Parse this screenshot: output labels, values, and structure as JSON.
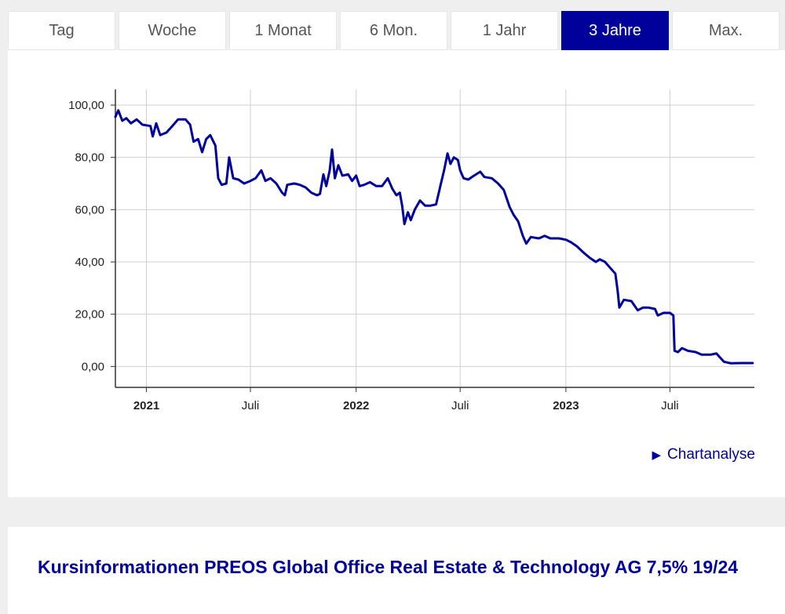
{
  "tabs": [
    {
      "label": "Tag",
      "active": false
    },
    {
      "label": "Woche",
      "active": false
    },
    {
      "label": "1 Monat",
      "active": false
    },
    {
      "label": "6 Mon.",
      "active": false
    },
    {
      "label": "1 Jahr",
      "active": false
    },
    {
      "label": "3 Jahre",
      "active": true
    },
    {
      "label": "Max.",
      "active": false
    }
  ],
  "chart_link": {
    "label": "Chartanalyse"
  },
  "info": {
    "title": "Kursinformationen PREOS Global Office Real Estate & Technology AG 7,5% 19/24"
  },
  "colors": {
    "accent": "#00009a",
    "grid": "#cfcfcf"
  },
  "chart_data": {
    "type": "line",
    "title": "",
    "xlabel": "",
    "ylabel": "",
    "ylim": [
      -8,
      106
    ],
    "xlim": [
      "2020-11-08",
      "2023-11-25"
    ],
    "grid": true,
    "yticks": [
      {
        "value": 0,
        "label": "0,00"
      },
      {
        "value": 20,
        "label": "20,00"
      },
      {
        "value": 40,
        "label": "40,00"
      },
      {
        "value": 60,
        "label": "60,00"
      },
      {
        "value": 80,
        "label": "80,00"
      },
      {
        "value": 100,
        "label": "100,00"
      }
    ],
    "xticks": [
      {
        "date": "2021-01-01",
        "label": "2021",
        "bold": true
      },
      {
        "date": "2021-07-01",
        "label": "Juli",
        "bold": false
      },
      {
        "date": "2022-01-01",
        "label": "2022",
        "bold": true
      },
      {
        "date": "2022-07-01",
        "label": "Juli",
        "bold": false
      },
      {
        "date": "2023-01-01",
        "label": "2023",
        "bold": true
      },
      {
        "date": "2023-07-01",
        "label": "Juli",
        "bold": false
      }
    ],
    "series": [
      {
        "color": "#00009a",
        "points": [
          [
            "2020-11-08",
            95.5
          ],
          [
            "2020-11-13",
            98.0
          ],
          [
            "2020-11-20",
            94.0
          ],
          [
            "2020-11-27",
            95.0
          ],
          [
            "2020-12-05",
            93.0
          ],
          [
            "2020-12-15",
            94.5
          ],
          [
            "2020-12-25",
            92.5
          ],
          [
            "2021-01-08",
            92.0
          ],
          [
            "2021-01-12",
            88.0
          ],
          [
            "2021-01-18",
            93.0
          ],
          [
            "2021-01-25",
            88.5
          ],
          [
            "2021-02-05",
            89.5
          ],
          [
            "2021-02-15",
            92.0
          ],
          [
            "2021-02-25",
            94.5
          ],
          [
            "2021-03-10",
            94.5
          ],
          [
            "2021-03-18",
            92.5
          ],
          [
            "2021-03-24",
            86.0
          ],
          [
            "2021-04-01",
            87.0
          ],
          [
            "2021-04-08",
            82.0
          ],
          [
            "2021-04-15",
            87.0
          ],
          [
            "2021-04-22",
            88.5
          ],
          [
            "2021-05-01",
            84.5
          ],
          [
            "2021-05-06",
            72.0
          ],
          [
            "2021-05-12",
            69.5
          ],
          [
            "2021-05-20",
            70.0
          ],
          [
            "2021-05-25",
            80.0
          ],
          [
            "2021-06-01",
            72.0
          ],
          [
            "2021-06-10",
            71.5
          ],
          [
            "2021-06-20",
            70.0
          ],
          [
            "2021-07-01",
            71.0
          ],
          [
            "2021-07-10",
            72.0
          ],
          [
            "2021-07-20",
            75.0
          ],
          [
            "2021-07-27",
            71.0
          ],
          [
            "2021-08-05",
            72.0
          ],
          [
            "2021-08-15",
            70.0
          ],
          [
            "2021-08-25",
            66.5
          ],
          [
            "2021-08-30",
            65.5
          ],
          [
            "2021-09-03",
            69.5
          ],
          [
            "2021-09-15",
            70.0
          ],
          [
            "2021-09-25",
            69.5
          ],
          [
            "2021-10-05",
            68.5
          ],
          [
            "2021-10-15",
            66.5
          ],
          [
            "2021-10-25",
            65.5
          ],
          [
            "2021-10-30",
            66.0
          ],
          [
            "2021-11-05",
            73.5
          ],
          [
            "2021-11-10",
            69.0
          ],
          [
            "2021-11-16",
            75.0
          ],
          [
            "2021-11-20",
            83.0
          ],
          [
            "2021-11-25",
            72.0
          ],
          [
            "2021-12-01",
            77.0
          ],
          [
            "2021-12-08",
            73.0
          ],
          [
            "2021-12-18",
            73.5
          ],
          [
            "2021-12-25",
            71.0
          ],
          [
            "2022-01-01",
            73.0
          ],
          [
            "2022-01-07",
            69.0
          ],
          [
            "2022-01-15",
            69.5
          ],
          [
            "2022-01-25",
            70.5
          ],
          [
            "2022-02-05",
            69.0
          ],
          [
            "2022-02-15",
            69.0
          ],
          [
            "2022-02-25",
            72.0
          ],
          [
            "2022-03-05",
            68.0
          ],
          [
            "2022-03-12",
            65.5
          ],
          [
            "2022-03-18",
            66.5
          ],
          [
            "2022-03-22",
            61.5
          ],
          [
            "2022-03-26",
            54.5
          ],
          [
            "2022-04-01",
            59.0
          ],
          [
            "2022-04-06",
            56.0
          ],
          [
            "2022-04-13",
            60.0
          ],
          [
            "2022-04-22",
            63.5
          ],
          [
            "2022-05-01",
            61.5
          ],
          [
            "2022-05-10",
            61.5
          ],
          [
            "2022-05-20",
            62.0
          ],
          [
            "2022-05-28",
            69.5
          ],
          [
            "2022-06-03",
            75.0
          ],
          [
            "2022-06-09",
            81.5
          ],
          [
            "2022-06-14",
            77.5
          ],
          [
            "2022-06-20",
            80.0
          ],
          [
            "2022-06-27",
            79.0
          ],
          [
            "2022-07-01",
            75.0
          ],
          [
            "2022-07-07",
            72.0
          ],
          [
            "2022-07-15",
            71.5
          ],
          [
            "2022-07-25",
            73.0
          ],
          [
            "2022-08-05",
            74.5
          ],
          [
            "2022-08-12",
            72.5
          ],
          [
            "2022-08-25",
            72.0
          ],
          [
            "2022-09-05",
            70.0
          ],
          [
            "2022-09-15",
            67.5
          ],
          [
            "2022-09-25",
            61.0
          ],
          [
            "2022-10-02",
            58.0
          ],
          [
            "2022-10-10",
            55.5
          ],
          [
            "2022-10-18",
            50.0
          ],
          [
            "2022-10-24",
            47.0
          ],
          [
            "2022-11-01",
            49.5
          ],
          [
            "2022-11-15",
            49.0
          ],
          [
            "2022-11-25",
            50.0
          ],
          [
            "2022-12-05",
            49.0
          ],
          [
            "2022-12-20",
            49.0
          ],
          [
            "2023-01-01",
            48.5
          ],
          [
            "2023-01-10",
            47.5
          ],
          [
            "2023-01-20",
            46.0
          ],
          [
            "2023-02-01",
            43.5
          ],
          [
            "2023-02-12",
            41.5
          ],
          [
            "2023-02-22",
            40.0
          ],
          [
            "2023-03-01",
            41.0
          ],
          [
            "2023-03-10",
            40.0
          ],
          [
            "2023-03-18",
            38.0
          ],
          [
            "2023-03-28",
            35.5
          ],
          [
            "2023-04-01",
            29.0
          ],
          [
            "2023-04-04",
            22.5
          ],
          [
            "2023-04-12",
            25.5
          ],
          [
            "2023-04-25",
            25.0
          ],
          [
            "2023-05-06",
            21.5
          ],
          [
            "2023-05-15",
            22.5
          ],
          [
            "2023-05-25",
            22.5
          ],
          [
            "2023-06-05",
            22.0
          ],
          [
            "2023-06-10",
            19.5
          ],
          [
            "2023-06-20",
            20.5
          ],
          [
            "2023-07-01",
            20.5
          ],
          [
            "2023-07-07",
            19.5
          ],
          [
            "2023-07-09",
            6.0
          ],
          [
            "2023-07-15",
            5.5
          ],
          [
            "2023-07-22",
            7.0
          ],
          [
            "2023-08-01",
            6.0
          ],
          [
            "2023-08-15",
            5.5
          ],
          [
            "2023-08-25",
            4.5
          ],
          [
            "2023-09-10",
            4.5
          ],
          [
            "2023-09-20",
            5.0
          ],
          [
            "2023-09-26",
            3.5
          ],
          [
            "2023-10-03",
            1.8
          ],
          [
            "2023-10-15",
            1.2
          ],
          [
            "2023-11-01",
            1.3
          ],
          [
            "2023-11-22",
            1.3
          ]
        ]
      }
    ]
  }
}
